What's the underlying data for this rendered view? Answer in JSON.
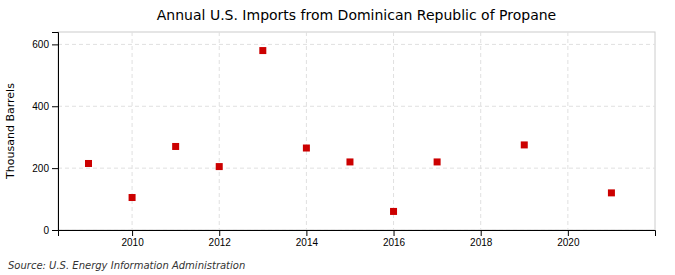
{
  "chart_data": {
    "type": "scatter",
    "title": "Annual U.S. Imports from Dominican Republic of Propane",
    "ylabel": "Thousand Barrels",
    "source": "Source: U.S. Energy Information Administration",
    "x": [
      2009,
      2010,
      2011,
      2012,
      2013,
      2014,
      2015,
      2016,
      2017,
      2019,
      2021
    ],
    "values": [
      215,
      105,
      270,
      205,
      580,
      265,
      220,
      60,
      220,
      275,
      120
    ],
    "color": "#cc0000",
    "marker": "square",
    "xlim": [
      2008.3,
      2022.0
    ],
    "xticks": [
      2010,
      2012,
      2014,
      2016,
      2018,
      2020
    ],
    "ylim": [
      0,
      640
    ],
    "yticks": [
      0,
      200,
      400,
      600
    ],
    "grid": true
  }
}
